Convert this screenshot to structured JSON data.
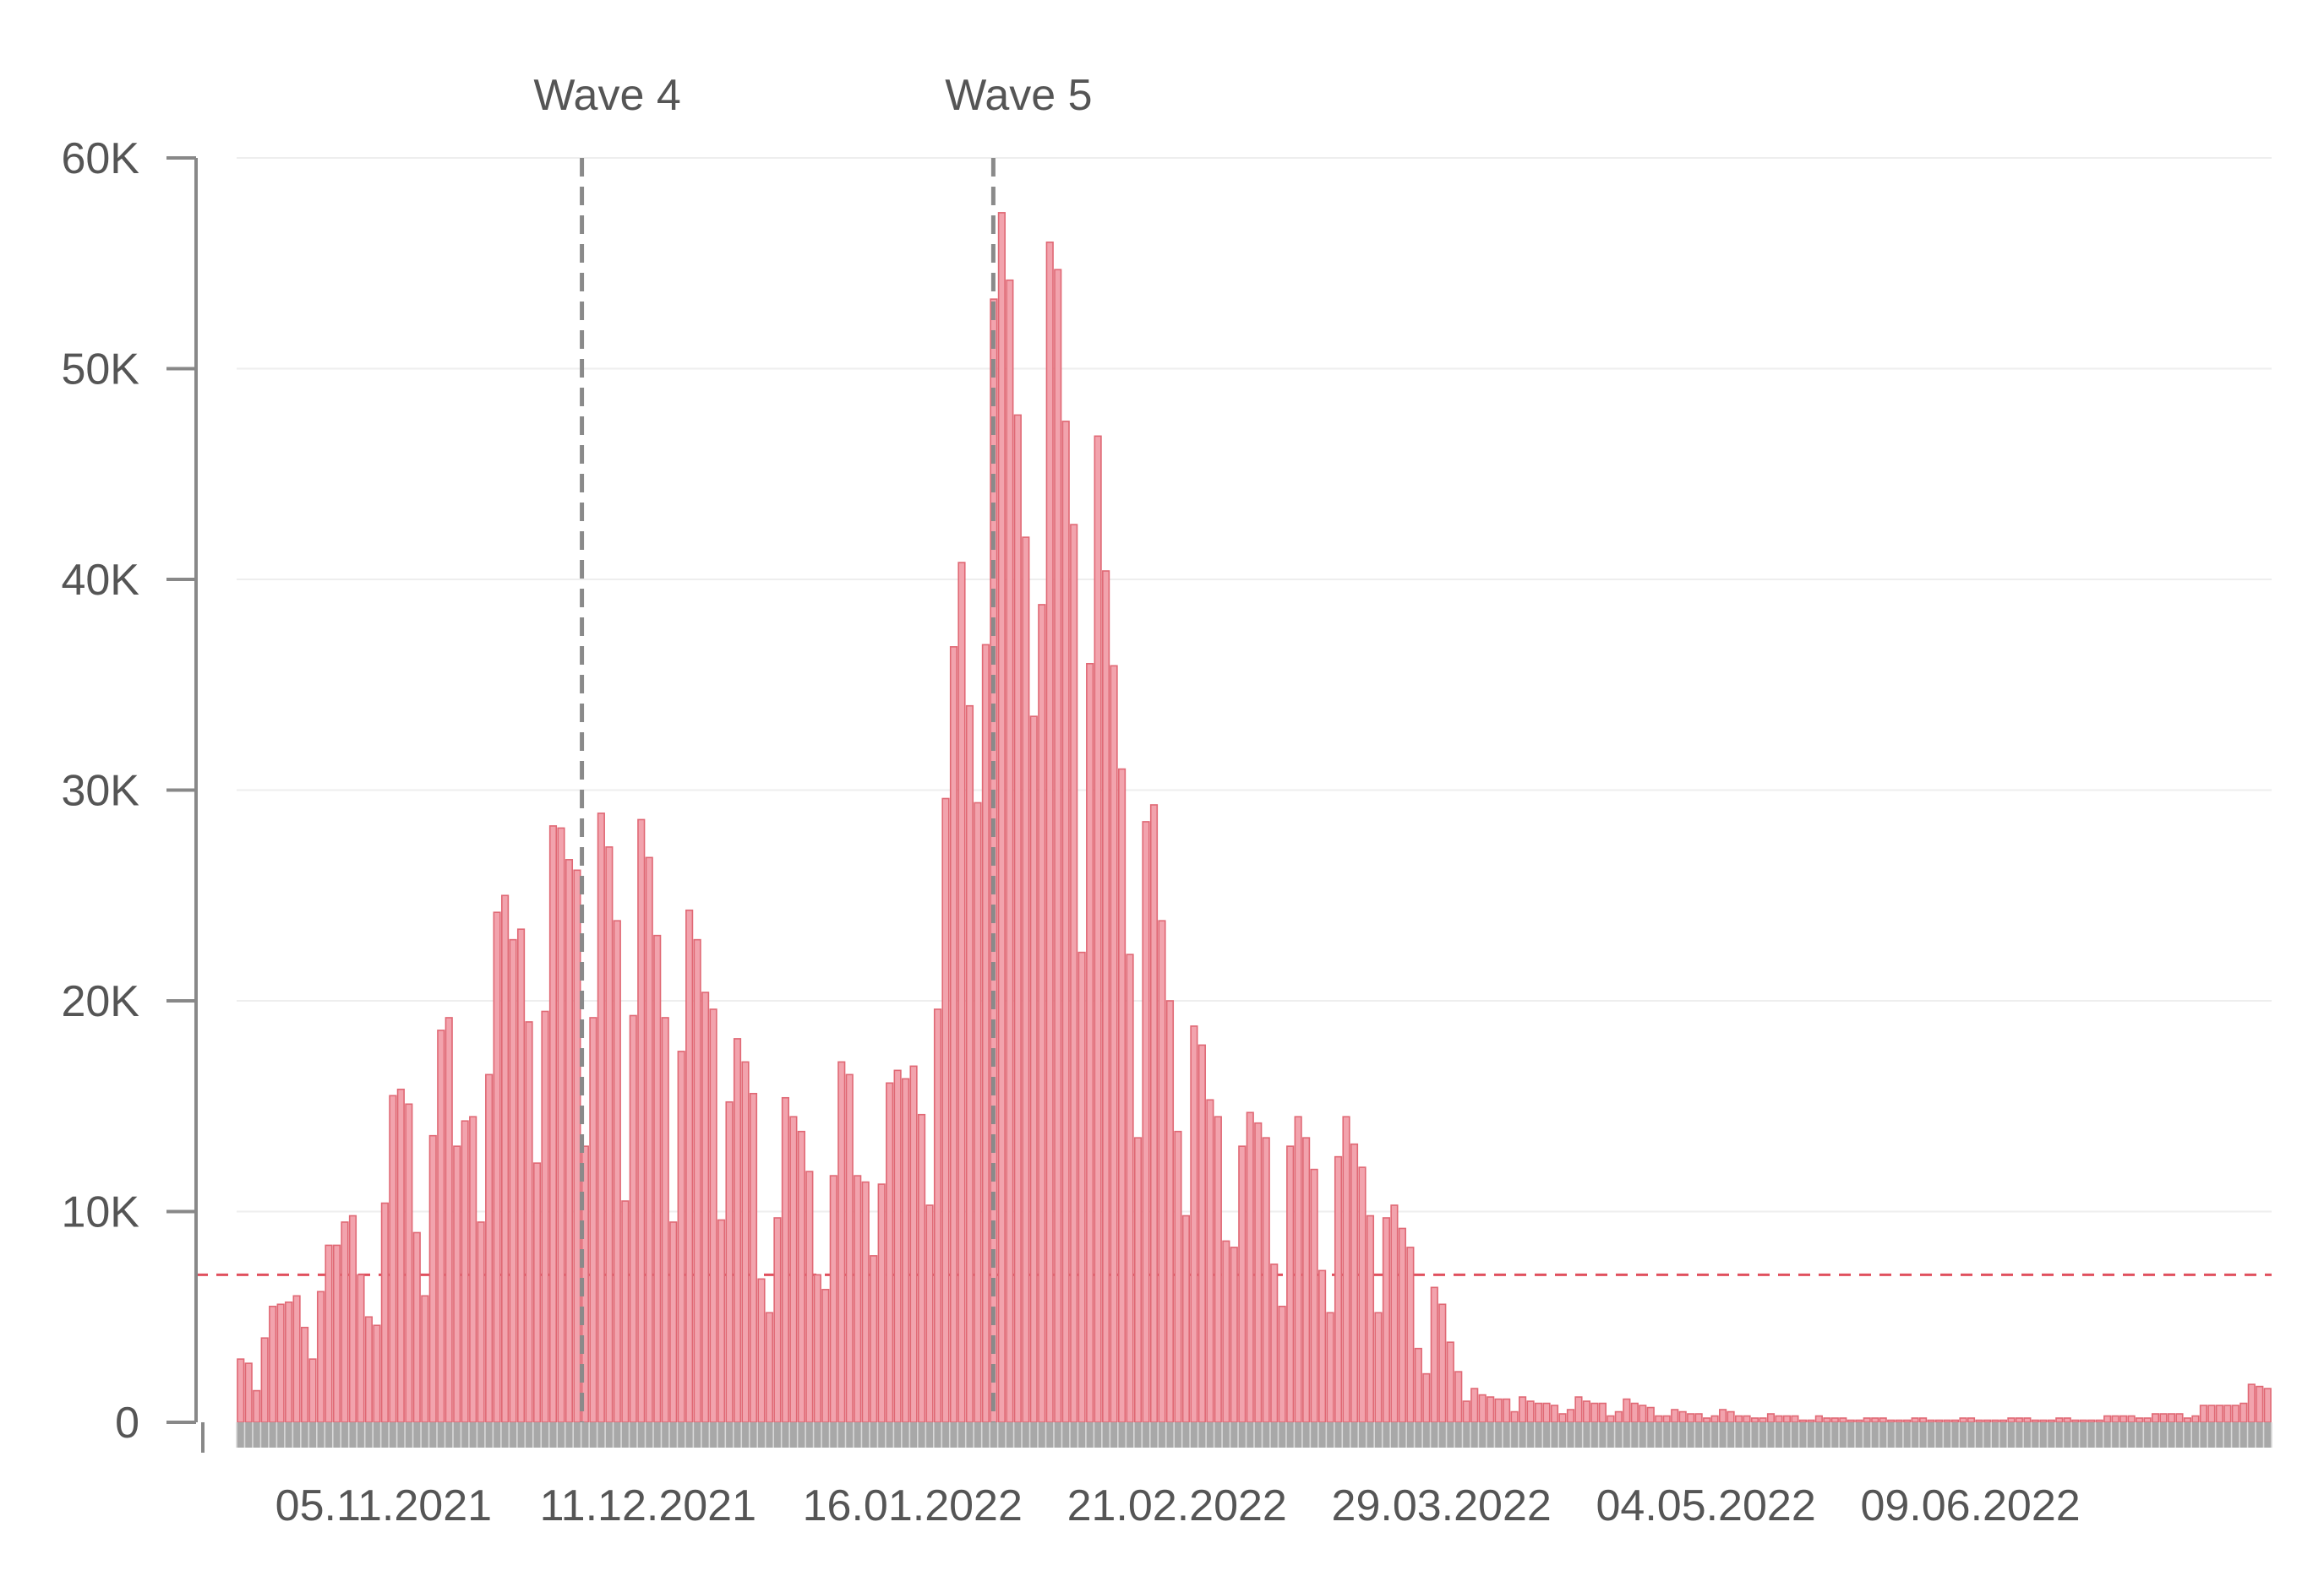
{
  "chart_data": {
    "type": "bar",
    "title": "",
    "xlabel": "",
    "ylabel": "",
    "ylim": [
      0,
      60000
    ],
    "y_ticks": [
      {
        "value": 0,
        "label": "0"
      },
      {
        "value": 10000,
        "label": "10K"
      },
      {
        "value": 20000,
        "label": "20K"
      },
      {
        "value": 30000,
        "label": "30K"
      },
      {
        "value": 40000,
        "label": "40K"
      },
      {
        "value": 50000,
        "label": "50K"
      },
      {
        "value": 60000,
        "label": "60K"
      }
    ],
    "x_tick_labels": [
      "05.11.2021",
      "11.12.2021",
      "16.01.2022",
      "21.02.2022",
      "29.03.2022",
      "04.05.2022",
      "09.06.2022"
    ],
    "x_ticks": [
      {
        "date": "2021-11-05",
        "label": "05.11.2021"
      },
      {
        "date": "2021-12-11",
        "label": "11.12.2021"
      },
      {
        "date": "2022-01-16",
        "label": "16.01.2022"
      },
      {
        "date": "2022-02-21",
        "label": "21.02.2022"
      },
      {
        "date": "2022-03-29",
        "label": "29.03.2022"
      },
      {
        "date": "2022-05-04",
        "label": "04.05.2022"
      },
      {
        "date": "2022-06-09",
        "label": "09.06.2022"
      }
    ],
    "x_start": "2021-10-16",
    "x_end": "2022-07-20",
    "wave_markers": [
      {
        "date": "2021-12-02",
        "label": "Wave 4"
      },
      {
        "date": "2022-01-27",
        "label": "Wave 5"
      }
    ],
    "reference_line": {
      "value": 7000,
      "style": "dashed",
      "color": "#e0505e"
    },
    "bar_color": "#f2a3ad",
    "bar_stroke": "#e06874",
    "values": [
      3000,
      2800,
      1500,
      4000,
      5500,
      5600,
      5700,
      6000,
      4500,
      3000,
      6200,
      8400,
      8400,
      9500,
      9800,
      7000,
      5000,
      4600,
      10400,
      15500,
      15800,
      15100,
      9000,
      6000,
      13600,
      18600,
      19200,
      13100,
      14300,
      14500,
      9500,
      16500,
      24200,
      25000,
      22900,
      23400,
      19000,
      12300,
      19500,
      28300,
      28200,
      26700,
      26200,
      13100,
      19200,
      28900,
      27300,
      23800,
      10500,
      19300,
      28600,
      26800,
      23100,
      19200,
      9500,
      17600,
      24300,
      22900,
      20400,
      19600,
      9600,
      15200,
      18200,
      17100,
      15600,
      6800,
      5200,
      9700,
      15400,
      14500,
      13800,
      11900,
      7000,
      6300,
      11700,
      17100,
      16500,
      11700,
      11400,
      7900,
      11300,
      16100,
      16700,
      16300,
      16900,
      14600,
      10300,
      19600,
      29600,
      36800,
      40800,
      34000,
      29400,
      36900,
      53300,
      57400,
      54200,
      47800,
      42000,
      33500,
      38800,
      56000,
      54700,
      47500,
      42600,
      22300,
      36000,
      46800,
      40400,
      35900,
      31000,
      22200,
      13500,
      28500,
      29300,
      23800,
      20000,
      13800,
      9800,
      18800,
      17900,
      15300,
      14500,
      8600,
      8300,
      13100,
      14700,
      14200,
      13500,
      7500,
      5500,
      13100,
      14500,
      13500,
      12000,
      7200,
      5200,
      12600,
      14500,
      13200,
      12100,
      9800,
      5200,
      9700,
      10300,
      9200,
      8300,
      3500,
      2300,
      6400,
      5600,
      3800,
      2400,
      1000,
      1600,
      1300,
      1200,
      1100,
      1100,
      500,
      1200,
      1000,
      900,
      900,
      800,
      400,
      600,
      1200,
      1000,
      900,
      900,
      300,
      500,
      1100,
      900,
      800,
      700,
      300,
      300,
      600,
      500,
      400,
      400,
      200,
      300,
      600,
      500,
      300,
      300,
      200,
      200,
      400,
      300,
      300,
      300,
      100,
      100,
      300,
      200,
      200,
      200,
      100,
      100,
      200,
      200,
      200,
      100,
      100,
      100,
      200,
      200,
      100,
      100,
      100,
      100,
      200,
      200,
      100,
      100,
      100,
      100,
      200,
      200,
      200,
      100,
      100,
      100,
      200,
      200,
      100,
      100,
      100,
      100,
      300,
      300,
      300,
      300,
      200,
      200,
      400,
      400,
      400,
      400,
      200,
      300,
      800,
      800,
      800,
      800,
      800,
      900,
      1800,
      1700,
      1600
    ]
  }
}
